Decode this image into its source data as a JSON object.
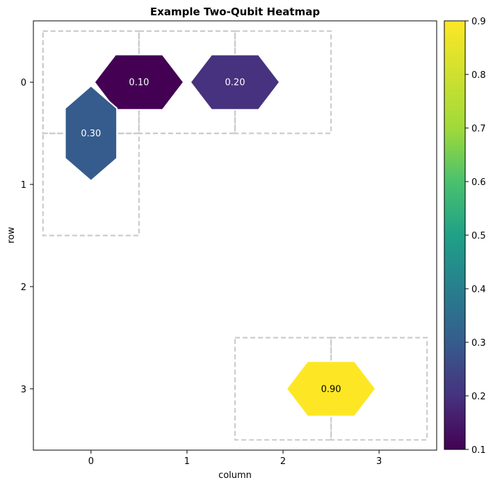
{
  "chart_data": {
    "type": "heatmap",
    "title": "Example Two-Qubit Heatmap",
    "xlabel": "column",
    "ylabel": "row",
    "xlim": [
      -0.6,
      3.6
    ],
    "ylim": [
      3.6,
      -0.6
    ],
    "x_ticks": [
      "0",
      "1",
      "2",
      "3"
    ],
    "y_ticks": [
      "0",
      "1",
      "2",
      "3"
    ],
    "colorbar": {
      "min": 0.1,
      "max": 0.9,
      "ticks": [
        "0.1",
        "0.2",
        "0.3",
        "0.4",
        "0.5",
        "0.6",
        "0.7",
        "0.8",
        "0.9"
      ],
      "colormap": "viridis"
    },
    "cells": [
      {
        "label": "0.10",
        "value": 0.1,
        "orientation": "horizontal",
        "qubits": [
          [
            0,
            0
          ],
          [
            0,
            1
          ]
        ],
        "center": [
          0.5,
          0
        ],
        "color": "#440154",
        "text_color": "#ffffff"
      },
      {
        "label": "0.20",
        "value": 0.2,
        "orientation": "horizontal",
        "qubits": [
          [
            0,
            1
          ],
          [
            0,
            2
          ]
        ],
        "center": [
          1.5,
          0
        ],
        "color": "#46327e",
        "text_color": "#ffffff"
      },
      {
        "label": "0.30",
        "value": 0.3,
        "orientation": "vertical",
        "qubits": [
          [
            0,
            0
          ],
          [
            1,
            0
          ]
        ],
        "center": [
          0,
          0.5
        ],
        "color": "#365c8d",
        "text_color": "#ffffff"
      },
      {
        "label": "0.90",
        "value": 0.9,
        "orientation": "horizontal",
        "qubits": [
          [
            3,
            2
          ],
          [
            3,
            3
          ]
        ],
        "center": [
          2.5,
          3
        ],
        "color": "#fde725",
        "text_color": "#000000"
      }
    ]
  }
}
